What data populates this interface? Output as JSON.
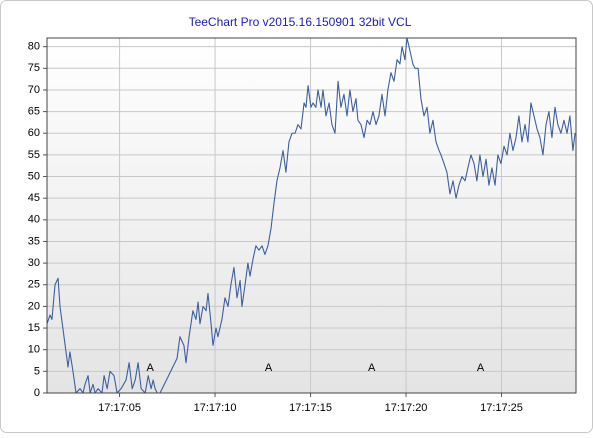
{
  "chart_data": {
    "type": "line",
    "title": "TeeChart Pro v2015.16.150901 32bit VCL",
    "x": [
      1.2,
      1.36,
      1.46,
      1.62,
      1.78,
      1.88,
      2.09,
      2.3,
      2.4,
      2.56,
      2.72,
      2.93,
      3.09,
      3.19,
      3.35,
      3.46,
      3.61,
      3.72,
      3.87,
      4.08,
      4.19,
      4.35,
      4.5,
      4.71,
      4.87,
      5.08,
      5.34,
      5.5,
      5.66,
      5.82,
      5.97,
      6.13,
      6.34,
      6.5,
      6.65,
      6.76,
      6.86,
      6.97,
      7.12,
      8.01,
      8.16,
      8.37,
      8.48,
      8.64,
      8.84,
      9.0,
      9.11,
      9.21,
      9.37,
      9.53,
      9.63,
      9.79,
      9.89,
      10.05,
      10.15,
      10.36,
      10.52,
      10.68,
      10.83,
      10.99,
      11.15,
      11.31,
      11.41,
      11.57,
      11.72,
      11.83,
      11.99,
      12.14,
      12.3,
      12.46,
      12.61,
      12.77,
      12.93,
      13.09,
      13.24,
      13.4,
      13.56,
      13.71,
      13.87,
      14.03,
      14.19,
      14.34,
      14.5,
      14.66,
      14.76,
      14.87,
      15.02,
      15.13,
      15.28,
      15.39,
      15.55,
      15.65,
      15.81,
      15.97,
      16.12,
      16.28,
      16.44,
      16.59,
      16.75,
      16.91,
      17.06,
      17.22,
      17.38,
      17.48,
      17.64,
      17.8,
      17.96,
      18.11,
      18.27,
      18.43,
      18.58,
      18.74,
      18.9,
      19.05,
      19.21,
      19.37,
      19.53,
      19.68,
      19.79,
      19.94,
      20.05,
      20.21,
      20.36,
      20.47,
      20.63,
      20.78,
      20.94,
      21.1,
      21.25,
      21.41,
      21.57,
      21.73,
      21.83,
      21.99,
      22.14,
      22.3,
      22.46,
      22.62,
      22.77,
      22.93,
      23.09,
      23.24,
      23.4,
      23.56,
      23.71,
      23.87,
      24.03,
      24.19,
      24.34,
      24.5,
      24.66,
      24.81,
      24.97,
      25.13,
      25.29,
      25.44,
      25.6,
      25.76,
      25.91,
      26.07,
      26.23,
      26.38,
      26.54,
      26.7,
      26.86,
      27.01,
      27.17,
      27.33,
      27.48,
      27.64,
      27.8,
      27.95,
      28.11,
      28.27,
      28.43,
      28.58,
      28.74,
      28.85
    ],
    "series": [
      {
        "color": "#3d5f9e",
        "values": [
          16,
          18,
          17,
          25,
          26.5,
          20,
          13,
          6,
          9.5,
          5,
          0,
          1,
          0,
          2,
          4,
          0,
          2,
          0,
          1,
          0,
          4,
          1,
          5,
          4,
          0,
          1,
          3,
          7,
          1,
          3,
          7,
          1,
          0,
          4,
          1,
          3,
          1,
          0,
          0,
          8,
          13,
          11,
          7,
          13,
          19,
          17,
          21,
          16,
          20,
          19,
          23,
          16,
          11,
          15,
          13,
          17,
          22,
          20,
          25,
          29,
          22,
          26,
          20,
          25,
          30,
          27,
          31,
          34,
          33,
          34,
          32,
          34,
          38,
          44,
          49,
          52,
          56,
          51,
          58,
          60,
          60,
          62,
          61,
          67,
          66,
          71,
          66,
          67,
          66,
          70,
          66,
          70,
          64,
          67,
          62,
          60,
          72,
          66,
          69,
          64,
          70,
          65,
          68,
          63,
          62,
          59,
          63,
          62,
          65,
          62,
          64,
          69,
          64,
          70,
          74,
          72,
          77,
          76,
          80,
          77,
          82,
          79,
          76,
          75,
          75,
          68,
          64,
          66,
          60,
          63,
          58,
          56,
          55,
          53,
          51,
          46,
          49,
          45,
          48,
          50,
          49,
          52,
          55,
          53,
          49,
          55,
          50,
          54,
          48,
          52,
          48,
          55,
          53,
          57,
          55,
          60,
          56,
          59,
          64,
          58,
          62,
          58,
          67,
          64,
          61,
          59,
          55,
          62,
          65,
          59,
          66,
          62,
          60,
          63,
          60,
          64,
          56,
          60
        ]
      }
    ],
    "annotations": [
      {
        "text": "A",
        "x": 6.6,
        "y": 5.8
      },
      {
        "text": "A",
        "x": 12.8,
        "y": 5.8
      },
      {
        "text": "A",
        "x": 18.2,
        "y": 5.8
      },
      {
        "text": "A",
        "x": 23.9,
        "y": 5.8
      }
    ],
    "xlim": [
      1.2,
      28.9
    ],
    "xticks": [
      {
        "value": 5,
        "label": "17:17:05"
      },
      {
        "value": 10,
        "label": "17:17:10"
      },
      {
        "value": 15,
        "label": "17:17:15"
      },
      {
        "value": 20,
        "label": "17:17:20"
      },
      {
        "value": 25,
        "label": "17:17:25"
      }
    ],
    "ylim": [
      0,
      82
    ],
    "yticks": [
      0,
      5,
      10,
      15,
      20,
      25,
      30,
      35,
      40,
      45,
      50,
      55,
      60,
      65,
      70,
      75,
      80
    ],
    "grid": true
  }
}
